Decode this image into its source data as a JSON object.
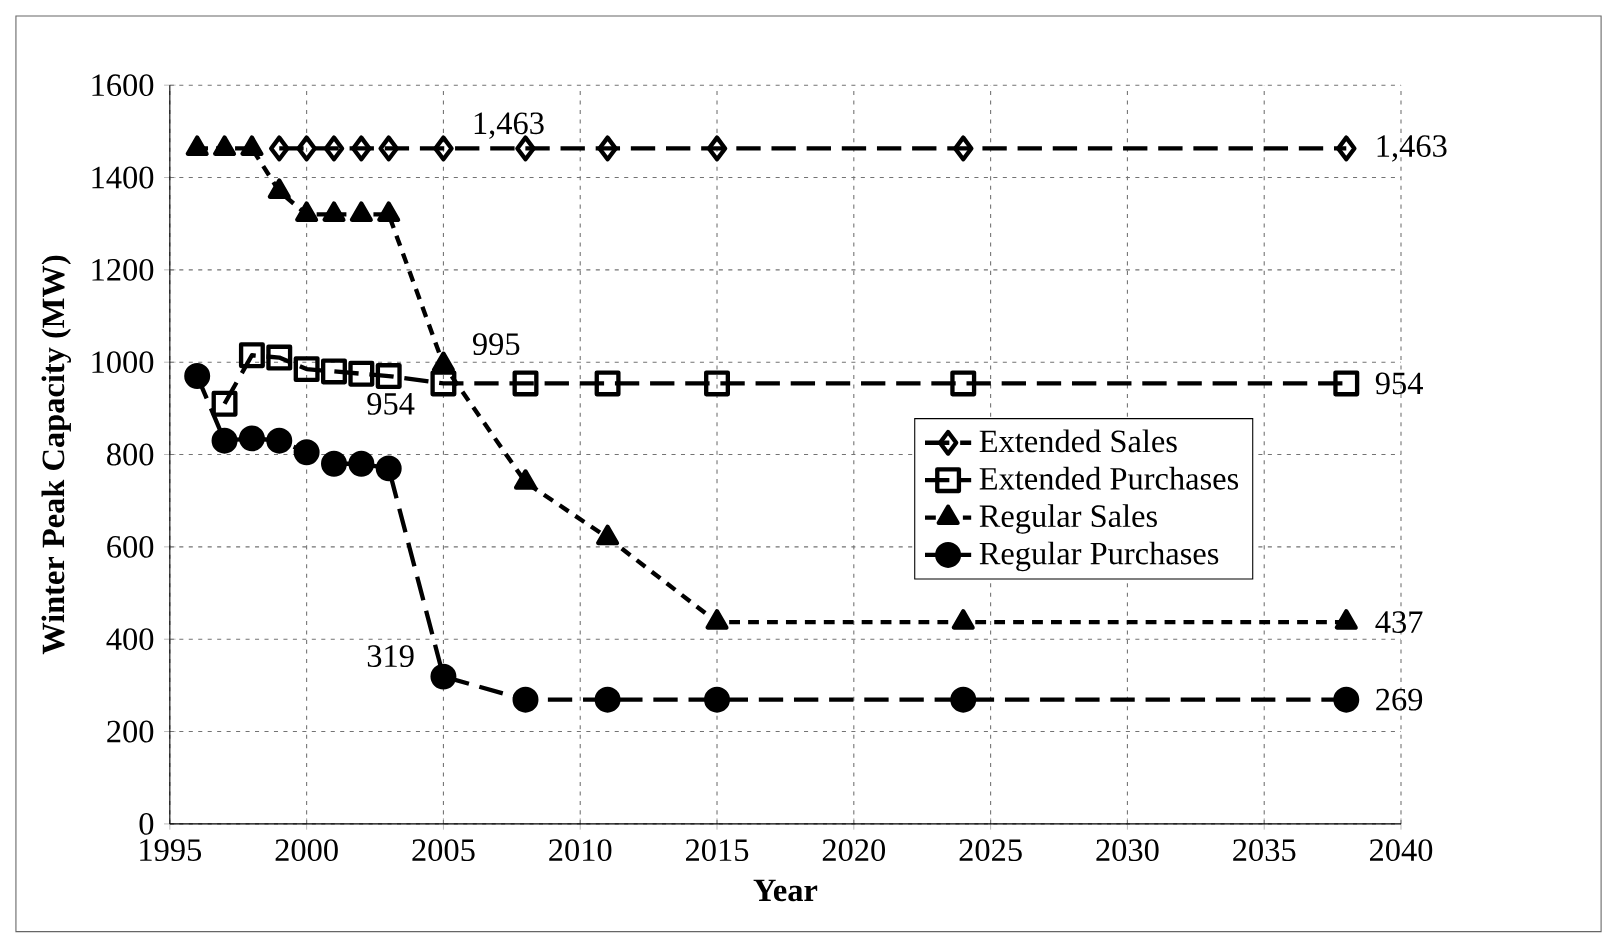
{
  "chart_data": {
    "type": "line",
    "xlabel": "Year",
    "ylabel": "Winter Peak Capacity (MW)",
    "xlim": [
      1995,
      2040
    ],
    "xticks": [
      1995,
      2000,
      2005,
      2010,
      2015,
      2020,
      2025,
      2030,
      2035,
      2040
    ],
    "ylim": [
      0,
      1600
    ],
    "yticks": [
      0,
      200,
      400,
      600,
      800,
      1000,
      1200,
      1400,
      1600
    ],
    "grid": true,
    "legend": "right",
    "series": [
      {
        "name": "Extended Sales",
        "color": "#000000",
        "marker": "diamond",
        "line_style": "dashed",
        "x": [
          1999,
          2000,
          2001,
          2002,
          2003,
          2005,
          2008,
          2011,
          2015,
          2024,
          2038
        ],
        "values": [
          1463,
          1463,
          1463,
          1463,
          1463,
          1463,
          1463,
          1463,
          1463,
          1463,
          1463
        ],
        "value_labels": [
          null,
          null,
          null,
          null,
          null,
          "1,463",
          null,
          null,
          null,
          null,
          "1,463"
        ]
      },
      {
        "name": "Extended Purchases",
        "color": "#000000",
        "marker": "square",
        "line_style": "dashed",
        "x": [
          1997,
          1998,
          1999,
          2000,
          2001,
          2002,
          2003,
          2005,
          2008,
          2011,
          2015,
          2024,
          2038
        ],
        "values": [
          910,
          1015,
          1010,
          985,
          980,
          975,
          970,
          954,
          954,
          954,
          954,
          954,
          954
        ],
        "value_labels": [
          null,
          null,
          null,
          null,
          null,
          null,
          null,
          "954",
          null,
          null,
          null,
          null,
          "954"
        ]
      },
      {
        "name": "Regular Sales",
        "color": "#000000",
        "marker": "triangle",
        "line_style": "dotted",
        "x": [
          1996,
          1997,
          1998,
          1999,
          2000,
          2001,
          2002,
          2003,
          2005,
          2008,
          2011,
          2015,
          2024,
          2038
        ],
        "values": [
          1463,
          1463,
          1463,
          1370,
          1320,
          1320,
          1320,
          1320,
          995,
          740,
          620,
          437,
          437,
          437
        ],
        "value_labels": [
          null,
          null,
          null,
          null,
          null,
          null,
          null,
          null,
          "995",
          null,
          null,
          null,
          null,
          "437"
        ]
      },
      {
        "name": "Regular Purchases",
        "color": "#000000",
        "marker": "circle",
        "line_style": "dashed",
        "x": [
          1996,
          1997,
          1998,
          1999,
          2000,
          2001,
          2002,
          2003,
          2005,
          2008,
          2011,
          2015,
          2024,
          2038
        ],
        "values": [
          970,
          830,
          835,
          830,
          805,
          780,
          780,
          770,
          319,
          269,
          269,
          269,
          269,
          269
        ],
        "value_labels": [
          null,
          null,
          null,
          null,
          null,
          null,
          null,
          null,
          "319",
          null,
          null,
          null,
          null,
          "269"
        ]
      }
    ]
  }
}
